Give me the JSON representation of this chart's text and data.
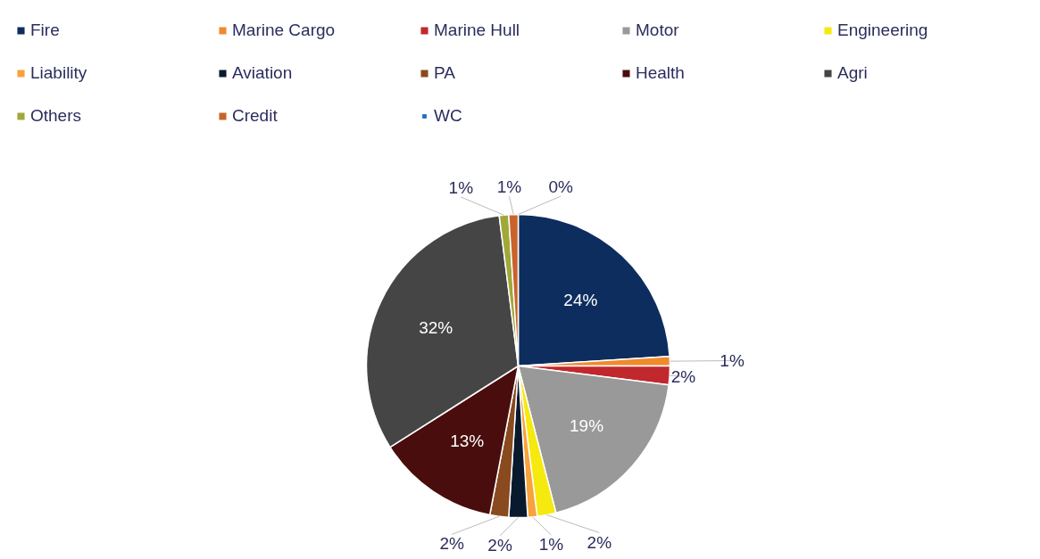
{
  "chart_data": {
    "type": "pie",
    "categories": [
      "Fire",
      "Marine Cargo",
      "Marine Hull",
      "Motor",
      "Engineering",
      "Liability",
      "Aviation",
      "PA",
      "Health",
      "Agri",
      "Others",
      "Credit",
      "WC"
    ],
    "values": [
      24,
      1,
      2,
      19,
      2,
      1,
      2,
      2,
      13,
      32,
      1,
      1,
      0
    ],
    "value_labels": [
      "24%",
      "1%",
      "2%",
      "19%",
      "2%",
      "1%",
      "2%",
      "2%",
      "13%",
      "32%",
      "1%",
      "1%",
      "0%"
    ],
    "colors": [
      "#0d2d5e",
      "#f08a2c",
      "#c0282d",
      "#999999",
      "#f5e90f",
      "#f7a23a",
      "#0a1a2e",
      "#8a4a20",
      "#4a0d0d",
      "#454545",
      "#a0a83a",
      "#c8642a",
      "#1f6fbf"
    ],
    "legend": "top"
  }
}
